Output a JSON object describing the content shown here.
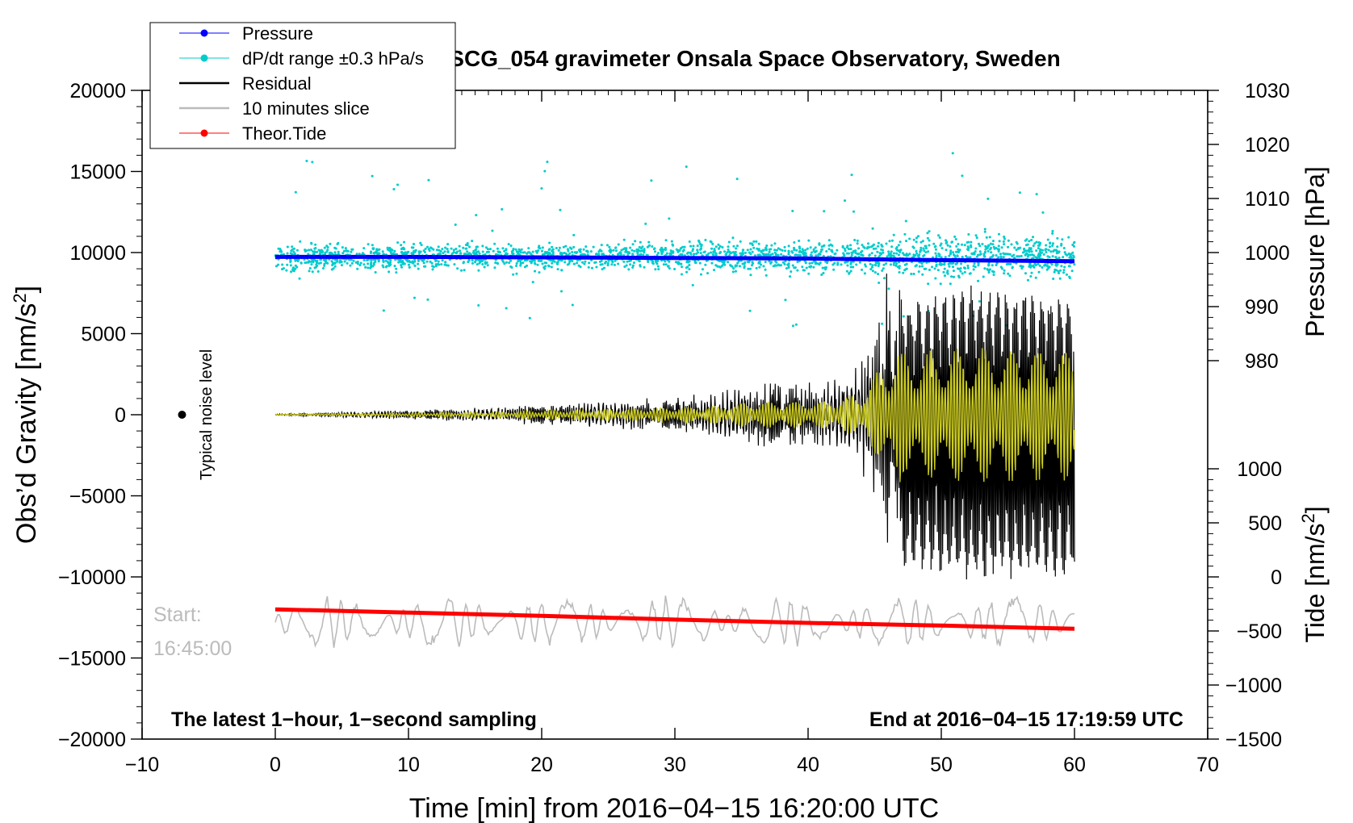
{
  "chart_data": {
    "type": "line",
    "title": "SCG_054 gravimeter Onsala Space Observatory, Sweden",
    "xlabel": "Time [min] from 2016−04−15 16:20:00 UTC",
    "ylabel_left": "Obs’d Gravity [nm/s²]",
    "ylabel_pressure": "Pressure [hPa]",
    "ylabel_tide": "Tide [nm/s²]",
    "xlim": [
      -10,
      70
    ],
    "ylim": [
      -20000,
      20000
    ],
    "x_ticks": [
      -10,
      0,
      10,
      20,
      30,
      40,
      50,
      60,
      70
    ],
    "y_ticks": [
      20000,
      15000,
      10000,
      5000,
      0,
      -5000,
      -10000,
      -15000,
      -20000
    ],
    "pressure_axis": {
      "range": [
        970,
        1030
      ],
      "ticks": [
        980,
        990,
        1000,
        1010,
        1020,
        1030
      ]
    },
    "tide_axis": {
      "range": [
        -1500,
        1500
      ],
      "ticks": [
        -1500,
        -1000,
        -500,
        0,
        500,
        1000
      ]
    },
    "grid": false,
    "legend": [
      {
        "label": "Pressure",
        "color": "#0000ff",
        "marker": "dot"
      },
      {
        "label": "dP/dt range ±0.3 hPa/s",
        "color": "#00cccc",
        "marker": "dot"
      },
      {
        "label": "Residual",
        "color": "#000000",
        "marker": "none"
      },
      {
        "label": "10 minutes slice",
        "color": "#bbbbbb",
        "marker": "none"
      },
      {
        "label": "Theor.Tide",
        "color": "#ff0000",
        "marker": "dot"
      }
    ],
    "legend_position": "top-left",
    "series": [
      {
        "name": "Pressure",
        "axis": "pressure",
        "x": [
          0,
          10,
          20,
          30,
          40,
          50,
          60
        ],
        "values": [
          999.2,
          999.2,
          999.1,
          999.0,
          998.9,
          998.6,
          998.4
        ]
      },
      {
        "name": "Theor.Tide",
        "axis": "tide",
        "x": [
          0,
          10,
          20,
          30,
          40,
          50,
          60
        ],
        "values": [
          -300,
          -330,
          -360,
          -395,
          -425,
          -450,
          -480
        ]
      },
      {
        "name": "Residual",
        "axis": "gravity",
        "envelope_x": [
          0,
          17,
          20,
          27,
          33,
          36,
          41,
          44,
          47,
          52,
          60
        ],
        "envelope_amplitude": [
          30,
          350,
          500,
          700,
          1000,
          1500,
          1500,
          2500,
          8500,
          9500,
          9000
        ]
      },
      {
        "name": "dP/dt range ±0.3 hPa/s",
        "axis": "pressure",
        "x_range": [
          0,
          60
        ],
        "center": 999.2,
        "spread": 3.5
      },
      {
        "name": "10 minutes slice",
        "axis": "tide",
        "x_range": [
          0,
          60
        ],
        "center": -420,
        "amplitude": 250
      }
    ],
    "annotations": {
      "noise_label": "Typical noise level",
      "noise_point": {
        "x": -7,
        "y": 0
      },
      "start_label": "Start:",
      "start_time": "16:45:00",
      "bottom_left": "The latest 1−hour, 1−second sampling",
      "bottom_right": "End at 2016−04−15 17:19:59 UTC"
    },
    "colors": {
      "pressure": "#0000ff",
      "dpdt": "#00cccc",
      "residual": "#000000",
      "slice": "#bbbbbb",
      "tide": "#ff0000",
      "filtered": "#cccc22"
    }
  }
}
